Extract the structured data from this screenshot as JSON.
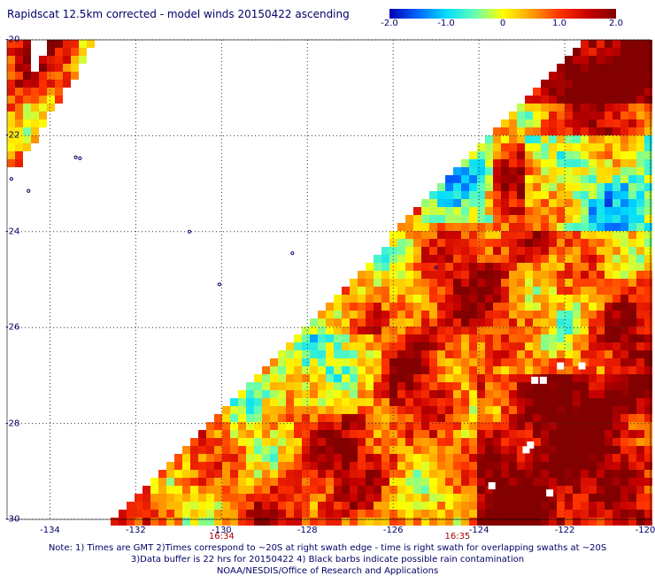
{
  "title": "Rapidscat 12.5km corrected - model winds 20150422 ascending",
  "colorbar": {
    "labels": [
      "-2.0",
      "-1.0",
      "0",
      "1.0",
      "2.0"
    ],
    "values": [
      -2.0,
      -1.0,
      0,
      1.0,
      2.0
    ],
    "colors": [
      "#0000b4",
      "#0064ff",
      "#00dcff",
      "#64ffb4",
      "#ffff00",
      "#ffa000",
      "#ff3200",
      "#c80000",
      "#820000"
    ]
  },
  "map": {
    "lon_range": [
      -135.0,
      -120.0
    ],
    "lat_range": [
      -30.0,
      -20.0
    ],
    "lon_ticks": [
      "-134",
      "-132",
      "-130",
      "-128",
      "-126",
      "-124",
      "-122",
      "-120"
    ],
    "lat_ticks": [
      "-20",
      "-22",
      "-24",
      "-26",
      "-28",
      "-30"
    ],
    "grid": "dotted",
    "swath_times": [
      {
        "label": "16:34",
        "lon": -130.0
      },
      {
        "label": "16:35",
        "lon": -124.5
      }
    ],
    "islands_lonlat": [
      [
        -133.4,
        -22.45
      ],
      [
        -133.3,
        -22.47
      ],
      [
        -134.9,
        -22.9
      ],
      [
        -134.5,
        -23.15
      ],
      [
        -130.75,
        -24.0
      ],
      [
        -128.35,
        -24.45
      ],
      [
        -130.05,
        -25.1
      ],
      [
        -125.0,
        -24.75
      ]
    ],
    "rain_flags_lonlat": [
      [
        -122.1,
        -26.8
      ],
      [
        -121.6,
        -26.8
      ],
      [
        -122.5,
        -27.1
      ],
      [
        -122.7,
        -27.1
      ],
      [
        -122.8,
        -28.45
      ],
      [
        -122.9,
        -28.55
      ],
      [
        -122.35,
        -29.45
      ],
      [
        -123.7,
        -29.3
      ]
    ]
  },
  "notes": [
    "Note: 1) Times are GMT 2)Times correspond to ~20S at right swath edge - time is right swath for overlapping swaths at ~20S",
    "3)Data buffer is 22 hrs for 20150422 4) Black barbs indicate possible rain contamination",
    "NOAA/NESDIS/Office of Research and Applications"
  ]
}
